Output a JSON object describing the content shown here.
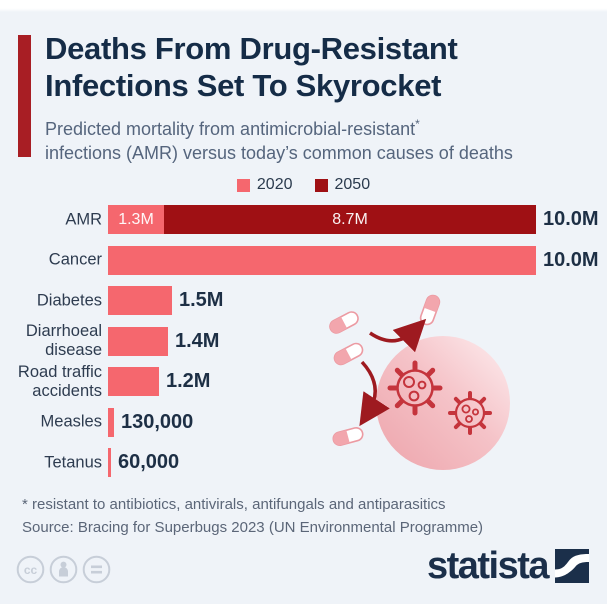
{
  "header": {
    "title_line1": "Deaths From Drug-Resistant",
    "title_line2": "Infections Set To Skyrocket",
    "subtitle_line1": "Predicted mortality from antimicrobial-resistant",
    "footnote_marker": "*",
    "subtitle_line2": "infections (AMR) versus today’s common causes of deaths"
  },
  "colors": {
    "background": "#eff3f8",
    "accent_bar": "#a81e24",
    "series_2020": "#f5676e",
    "series_2050": "#9f1014",
    "title_text": "#152c47",
    "subtitle_text": "#55657d",
    "value_text": "#1d2f45",
    "brand_navy": "#1b2f4a"
  },
  "legend": [
    {
      "label": "2020",
      "color": "#f5676e"
    },
    {
      "label": "2050",
      "color": "#9f1014"
    }
  ],
  "chart_data": {
    "type": "bar",
    "orientation": "horizontal",
    "title": "Predicted mortality from antimicrobial-resistant infections (AMR) versus today’s common causes of deaths",
    "unit": "deaths per year, millions",
    "xlim_millions": [
      0,
      10
    ],
    "grid": false,
    "legend_position": "top-center",
    "categories": [
      "AMR",
      "Cancer",
      "Diabetes",
      "Diarrhoeal disease",
      "Road traffic accidents",
      "Measles",
      "Tetanus"
    ],
    "series": [
      {
        "name": "2020",
        "values_millions": [
          1.3,
          10.0,
          1.5,
          1.4,
          1.2,
          0.13,
          0.06
        ]
      },
      {
        "name": "2050",
        "values_millions": [
          8.7,
          null,
          null,
          null,
          null,
          null,
          null
        ]
      }
    ],
    "rows": [
      {
        "label_lines": [
          "AMR"
        ],
        "segments": [
          {
            "series": "2020",
            "value_m": 1.3,
            "inner_label": "1.3M"
          },
          {
            "series": "2050",
            "value_m": 8.7,
            "inner_label": "8.7M"
          }
        ],
        "total": "10.0M"
      },
      {
        "label_lines": [
          "Cancer"
        ],
        "segments": [
          {
            "series": "2020",
            "value_m": 10.0
          }
        ],
        "total": "10.0M"
      },
      {
        "label_lines": [
          "Diabetes"
        ],
        "segments": [
          {
            "series": "2020",
            "value_m": 1.5
          }
        ],
        "total": "1.5M"
      },
      {
        "label_lines": [
          "Diarrhoeal",
          "disease"
        ],
        "segments": [
          {
            "series": "2020",
            "value_m": 1.4
          }
        ],
        "total": "1.4M"
      },
      {
        "label_lines": [
          "Road traffic",
          "accidents"
        ],
        "segments": [
          {
            "series": "2020",
            "value_m": 1.2
          }
        ],
        "total": "1.2M"
      },
      {
        "label_lines": [
          "Measles"
        ],
        "segments": [
          {
            "series": "2020",
            "value_m": 0.13
          }
        ],
        "total": "130,000"
      },
      {
        "label_lines": [
          "Tetanus"
        ],
        "segments": [
          {
            "series": "2020",
            "value_m": 0.06
          }
        ],
        "total": "60,000"
      }
    ]
  },
  "footer": {
    "footnote": "* resistant to antibiotics, antivirals, antifungals and antiparasitics",
    "source": "Source: Bracing for Superbugs 2023 (UN Environmental Programme)",
    "license_cc_label": "cc",
    "license_nd_label": "=",
    "brand": "statista"
  }
}
